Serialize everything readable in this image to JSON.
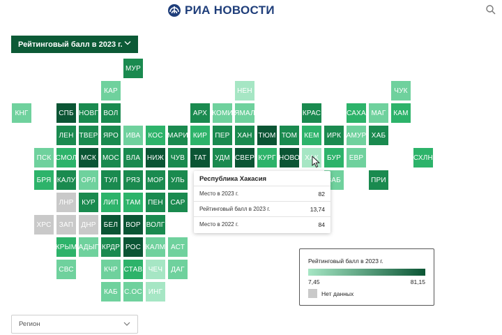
{
  "header": {
    "logo_text": "РИА НОВОСТИ",
    "logo_icon": "ria-novosti-emblem-icon",
    "search_icon": "search-icon"
  },
  "metric_select": {
    "label": "Рейтинговый балл в 2023 г.",
    "icon": "chevron-down-icon"
  },
  "region_select": {
    "placeholder": "Регион",
    "icon": "chevron-down-icon"
  },
  "colors": {
    "dark": "#0b5534",
    "mid_dark": "#1a8a4f",
    "mid": "#2db36a",
    "light": "#6fd19d",
    "lightest": "#a6e6c4",
    "no_data": "#c9c9c9",
    "metric_select_bg": "#0c5a36",
    "logo_blue": "#1f3e7a"
  },
  "tiles": [
    {
      "label": "МУР",
      "tone": "mid_dark"
    },
    {
      "label": "КАР",
      "tone": "light"
    },
    {
      "label": "НЕН",
      "tone": "lightest"
    },
    {
      "label": "ЧУК",
      "tone": "light"
    },
    {
      "label": "КНГ",
      "tone": "light"
    },
    {
      "label": "СПБ",
      "tone": "dark"
    },
    {
      "label": "НОВГ",
      "tone": "mid_dark"
    },
    {
      "label": "ВОЛ",
      "tone": "mid_dark"
    },
    {
      "label": "АРХ",
      "tone": "mid_dark"
    },
    {
      "label": "КОМИ",
      "tone": "light"
    },
    {
      "label": "ЯМАЛ",
      "tone": "light"
    },
    {
      "label": "КРАС",
      "tone": "mid_dark"
    },
    {
      "label": "САХА",
      "tone": "mid"
    },
    {
      "label": "МАГ",
      "tone": "light"
    },
    {
      "label": "КАМ",
      "tone": "mid"
    },
    {
      "label": "ЛЕН",
      "tone": "mid_dark"
    },
    {
      "label": "ТВЕР",
      "tone": "mid_dark"
    },
    {
      "label": "ЯРО",
      "tone": "mid_dark"
    },
    {
      "label": "ИВА",
      "tone": "light"
    },
    {
      "label": "КОС",
      "tone": "mid"
    },
    {
      "label": "МАРИ",
      "tone": "mid_dark"
    },
    {
      "label": "КИР",
      "tone": "mid"
    },
    {
      "label": "ПЕР",
      "tone": "mid_dark"
    },
    {
      "label": "ХАН",
      "tone": "mid_dark"
    },
    {
      "label": "ТЮМ",
      "tone": "dark"
    },
    {
      "label": "ТОМ",
      "tone": "mid_dark"
    },
    {
      "label": "КЕМ",
      "tone": "mid"
    },
    {
      "label": "ИРК",
      "tone": "mid_dark"
    },
    {
      "label": "АМУР",
      "tone": "light"
    },
    {
      "label": "ХАБ",
      "tone": "mid_dark"
    },
    {
      "label": "ПСК",
      "tone": "light"
    },
    {
      "label": "СМОЛ",
      "tone": "mid"
    },
    {
      "label": "МСК",
      "tone": "dark"
    },
    {
      "label": "МОС",
      "tone": "mid_dark"
    },
    {
      "label": "ВЛА",
      "tone": "mid_dark"
    },
    {
      "label": "НИЖ",
      "tone": "dark"
    },
    {
      "label": "ЧУВ",
      "tone": "mid_dark"
    },
    {
      "label": "ТАТ",
      "tone": "dark"
    },
    {
      "label": "УДМ",
      "tone": "mid_dark"
    },
    {
      "label": "СВЕР",
      "tone": "dark"
    },
    {
      "label": "КУРГ",
      "tone": "mid"
    },
    {
      "label": "НОВО",
      "tone": "dark"
    },
    {
      "label": "ХАК",
      "tone": "lightest"
    },
    {
      "label": "БУР",
      "tone": "mid"
    },
    {
      "label": "ЕВР",
      "tone": "light"
    },
    {
      "label": "СХЛН",
      "tone": "mid"
    },
    {
      "label": "БРЯ",
      "tone": "mid"
    },
    {
      "label": "КАЛУ",
      "tone": "mid_dark"
    },
    {
      "label": "ОРЛ",
      "tone": "light"
    },
    {
      "label": "ТУЛ",
      "tone": "mid_dark"
    },
    {
      "label": "РЯЗ",
      "tone": "mid_dark"
    },
    {
      "label": "МОР",
      "tone": "mid_dark"
    },
    {
      "label": "УЛЬ",
      "tone": "mid_dark"
    },
    {
      "label": "ЗАБ",
      "tone": "light"
    },
    {
      "label": "ПРИ",
      "tone": "mid_dark"
    },
    {
      "label": "ЛНР",
      "tone": "no_data"
    },
    {
      "label": "КУР",
      "tone": "mid_dark"
    },
    {
      "label": "ЛИП",
      "tone": "mid"
    },
    {
      "label": "ТАМ",
      "tone": "mid"
    },
    {
      "label": "ПЕН",
      "tone": "mid_dark"
    },
    {
      "label": "САР",
      "tone": "mid_dark"
    },
    {
      "label": "ХРС",
      "tone": "no_data"
    },
    {
      "label": "ЗАП",
      "tone": "no_data"
    },
    {
      "label": "ДНР",
      "tone": "no_data"
    },
    {
      "label": "БЕЛ",
      "tone": "dark"
    },
    {
      "label": "ВОР",
      "tone": "dark"
    },
    {
      "label": "ВОЛГ",
      "tone": "mid_dark"
    },
    {
      "label": "КРЫМ",
      "tone": "mid"
    },
    {
      "label": "АДЫГ",
      "tone": "light"
    },
    {
      "label": "КРДР",
      "tone": "mid_dark"
    },
    {
      "label": "РОС",
      "tone": "dark"
    },
    {
      "label": "КАЛМ",
      "tone": "light"
    },
    {
      "label": "АСТ",
      "tone": "light"
    },
    {
      "label": "СВС",
      "tone": "light"
    },
    {
      "label": "КЧР",
      "tone": "light"
    },
    {
      "label": "СТАВ",
      "tone": "mid"
    },
    {
      "label": "ЧЕЧ",
      "tone": "lightest"
    },
    {
      "label": "ДАГ",
      "tone": "light"
    },
    {
      "label": "КАБ",
      "tone": "light"
    },
    {
      "label": "С.ОС",
      "tone": "light"
    },
    {
      "label": "ИНГ",
      "tone": "lightest"
    }
  ],
  "tooltip": {
    "title": "Республика Хакасия",
    "rows": [
      {
        "label": "Место в 2023 г.",
        "value": "82"
      },
      {
        "label": "Рейтинговый балл в 2023 г.",
        "value": "13,74"
      },
      {
        "label": "Место в 2022 г.",
        "value": "84"
      }
    ]
  },
  "legend": {
    "title": "Рейтинговый балл в 2023 г.",
    "min": "7,45",
    "max": "81,15",
    "no_data_label": "Нет данных"
  }
}
